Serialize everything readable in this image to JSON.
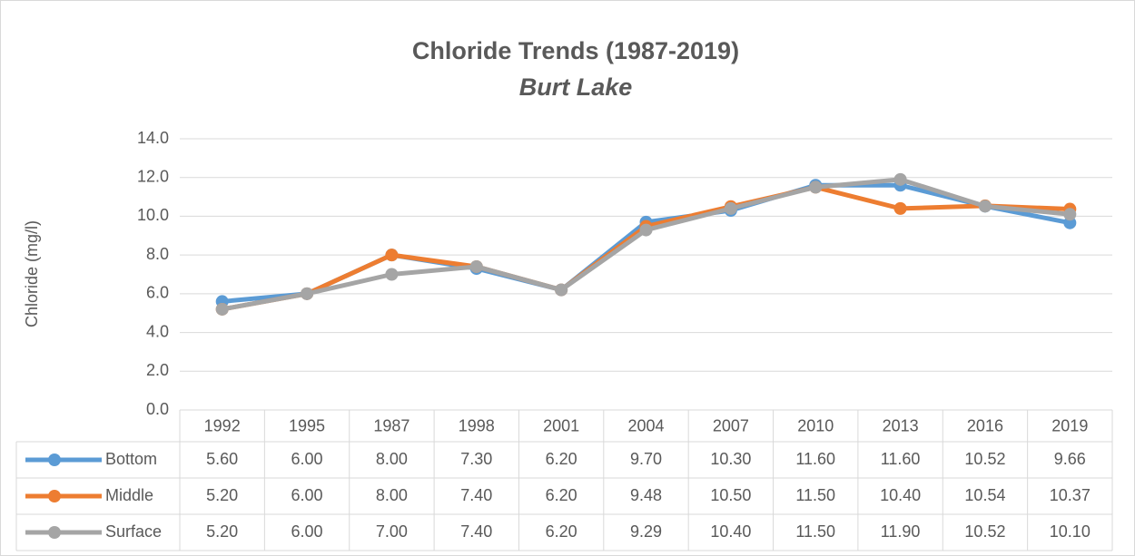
{
  "chart_data": {
    "type": "line",
    "title": "Chloride Trends (1987-2019)",
    "subtitle": "Burt Lake",
    "y_label": "Chloride (mg/l)",
    "categories": [
      "1992",
      "1995",
      "1987",
      "1998",
      "2001",
      "2004",
      "2007",
      "2010",
      "2013",
      "2016",
      "2019"
    ],
    "series": [
      {
        "name": "Bottom",
        "color": "#5b9bd5",
        "values": [
          5.6,
          6.0,
          8.0,
          7.3,
          6.2,
          9.7,
          10.3,
          11.6,
          11.6,
          10.52,
          9.66
        ],
        "value_labels": [
          "5.60",
          "6.00",
          "8.00",
          "7.30",
          "6.20",
          "9.70",
          "10.30",
          "11.60",
          "11.60",
          "10.52",
          "9.66"
        ]
      },
      {
        "name": "Middle",
        "color": "#ed7d31",
        "values": [
          5.2,
          6.0,
          8.0,
          7.4,
          6.2,
          9.48,
          10.5,
          11.5,
          10.4,
          10.54,
          10.37
        ],
        "value_labels": [
          "5.20",
          "6.00",
          "8.00",
          "7.40",
          "6.20",
          "9.48",
          "10.50",
          "11.50",
          "10.40",
          "10.54",
          "10.37"
        ]
      },
      {
        "name": "Surface",
        "color": "#a5a5a5",
        "values": [
          5.2,
          6.0,
          7.0,
          7.4,
          6.2,
          9.29,
          10.4,
          11.5,
          11.9,
          10.52,
          10.1
        ],
        "value_labels": [
          "5.20",
          "6.00",
          "7.00",
          "7.40",
          "6.20",
          "9.29",
          "10.40",
          "11.50",
          "11.90",
          "10.52",
          "10.10"
        ]
      }
    ],
    "ylim": [
      0,
      14
    ],
    "yticks": [
      {
        "value": 0,
        "label": "0.0"
      },
      {
        "value": 2,
        "label": "2.0"
      },
      {
        "value": 4,
        "label": "4.0"
      },
      {
        "value": 6,
        "label": "6.0"
      },
      {
        "value": 8,
        "label": "8.0"
      },
      {
        "value": 10,
        "label": "10.0"
      },
      {
        "value": 12,
        "label": "12.0"
      },
      {
        "value": 14,
        "label": "14.0"
      }
    ],
    "grid": true
  }
}
